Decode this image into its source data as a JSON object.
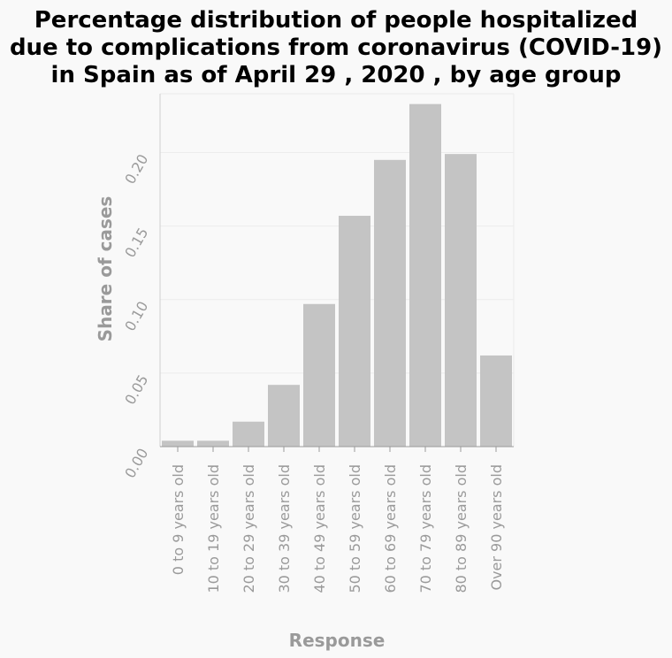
{
  "chart_data": {
    "type": "bar",
    "title_lines": [
      "Percentage distribution of people hospitalized",
      "due to complications from coronavirus (COVID-19)",
      "in Spain as of April 29 , 2020 , by age group"
    ],
    "xlabel": "Response",
    "ylabel": "Share of cases",
    "categories": [
      "0 to 9 years old",
      "10 to 19 years old",
      "20 to 29 years old",
      "30 to 39 years old",
      "40 to 49 years old",
      "50 to 59 years old",
      "60 to 69 years old",
      "70 to 79 years old",
      "80 to 89 years old",
      "Over 90 years old"
    ],
    "values": [
      0.004,
      0.004,
      0.017,
      0.042,
      0.097,
      0.157,
      0.195,
      0.233,
      0.199,
      0.062
    ],
    "ylim": [
      0,
      0.24
    ],
    "yticks": [
      0,
      0.05,
      0.1,
      0.15,
      0.2
    ],
    "ytick_labels": [
      "0.00",
      "0.05",
      "0.10",
      "0.15",
      "0.20"
    ],
    "grid": true,
    "bar_color": "#c4c4c4",
    "grid_color": "#ececec",
    "axis_color": "#9a9a9a",
    "background": "#f9f9f9"
  }
}
